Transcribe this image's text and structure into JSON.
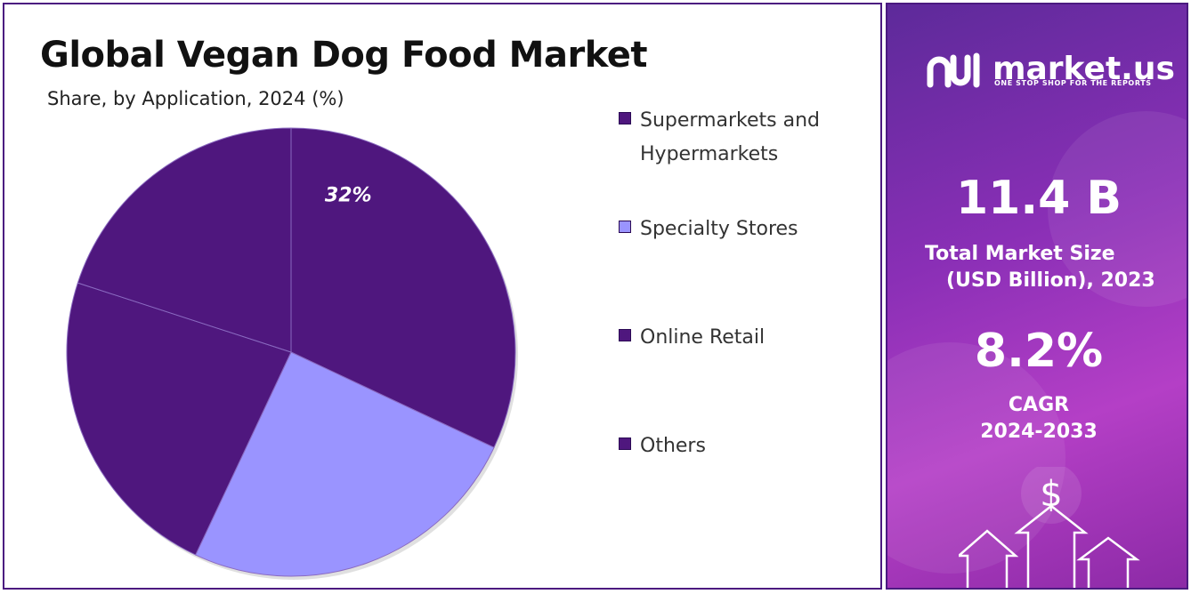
{
  "chart_data": {
    "type": "pie",
    "title": "Global Vegan Dog Food Market",
    "subtitle": "Share, by Application, 2024 (%)",
    "categories": [
      "Supermarkets and Hypermarkets",
      "Specialty Stores",
      "Online Retail",
      "Others"
    ],
    "values": [
      32,
      25,
      23,
      20
    ],
    "data_labels": [
      "32%",
      "",
      "",
      ""
    ],
    "colors": [
      "#4f177e",
      "#9a94ff",
      "#4f177e",
      "#4f177e"
    ],
    "legend_placement": "right"
  },
  "legend": {
    "items": [
      {
        "label": "Supermarkets and Hypermarkets",
        "color": "#4f177e"
      },
      {
        "label": "Specialty Stores",
        "color": "#9a94ff"
      },
      {
        "label": "Online Retail",
        "color": "#4f177e"
      },
      {
        "label": "Others",
        "color": "#4f177e"
      }
    ]
  },
  "brand": {
    "name": "market.us",
    "tagline": "ONE STOP SHOP FOR THE REPORTS",
    "icon": "market-us-logo-icon"
  },
  "stats": {
    "market_size_value": "11.4 B",
    "market_size_label_1": "Total Market Size",
    "market_size_label_2": "(USD Billion), 2023",
    "cagr_value": "8.2%",
    "cagr_label_1": "CAGR",
    "cagr_label_2": "2024-2033"
  },
  "decor": {
    "dollar_symbol": "$",
    "icon": "growth-arrows-icon"
  },
  "colors": {
    "panel_border": "#4b1a80",
    "dark_slice": "#4f177e",
    "light_slice": "#9a94ff"
  }
}
